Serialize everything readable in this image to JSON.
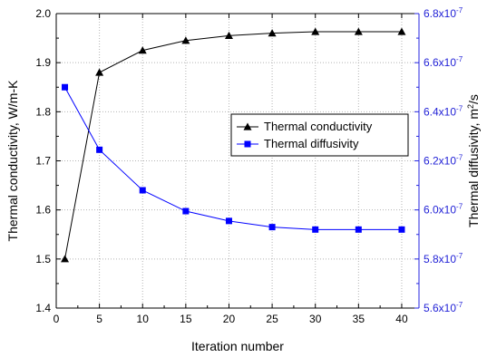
{
  "chart_data": {
    "type": "line",
    "xlabel": "Iteration number",
    "ylabel_left": "Thermal conductivity,  W/m-K",
    "ylabel_right": "Thermal diffusivity, m²/s",
    "xlim": [
      0,
      42
    ],
    "ylim_left": [
      1.4,
      2.0
    ],
    "ylim_right": [
      5.6e-07,
      6.8e-07
    ],
    "x_ticks": [
      0,
      5,
      10,
      15,
      20,
      25,
      30,
      35,
      40
    ],
    "y_ticks_left": [
      1.4,
      1.5,
      1.6,
      1.7,
      1.8,
      1.9,
      2.0
    ],
    "y_tick_labels_left": [
      "1.4",
      "1.5",
      "1.6",
      "1.7",
      "1.8",
      "1.9",
      "2.0"
    ],
    "y_ticks_right": [
      5.6e-07,
      5.8e-07,
      6e-07,
      6.2e-07,
      6.4e-07,
      6.6e-07,
      6.8e-07
    ],
    "y_tick_labels_right": [
      {
        "mant": "5.6x10",
        "exp": "-7"
      },
      {
        "mant": "5.8x10",
        "exp": "-7"
      },
      {
        "mant": "6.0x10",
        "exp": "-7"
      },
      {
        "mant": "6.2x10",
        "exp": "-7"
      },
      {
        "mant": "6.4x10",
        "exp": "-7"
      },
      {
        "mant": "6.6x10",
        "exp": "-7"
      },
      {
        "mant": "6.8x10",
        "exp": "-7"
      }
    ],
    "grid": true,
    "legend_position": "middle-right",
    "series": [
      {
        "name": "Thermal conductivity",
        "axis": "left",
        "marker": "triangle",
        "color": "#000000",
        "x": [
          1,
          5,
          10,
          15,
          20,
          25,
          30,
          35,
          40
        ],
        "y": [
          1.5,
          1.88,
          1.925,
          1.945,
          1.955,
          1.96,
          1.963,
          1.963,
          1.963
        ]
      },
      {
        "name": "Thermal diffusivity",
        "axis": "right",
        "marker": "square",
        "color": "#0000ff",
        "x": [
          1,
          5,
          10,
          15,
          20,
          25,
          30,
          35,
          40
        ],
        "y": [
          6.5e-07,
          6.245e-07,
          6.08e-07,
          5.995e-07,
          5.955e-07,
          5.93e-07,
          5.92e-07,
          5.92e-07,
          5.92e-07
        ]
      }
    ]
  }
}
